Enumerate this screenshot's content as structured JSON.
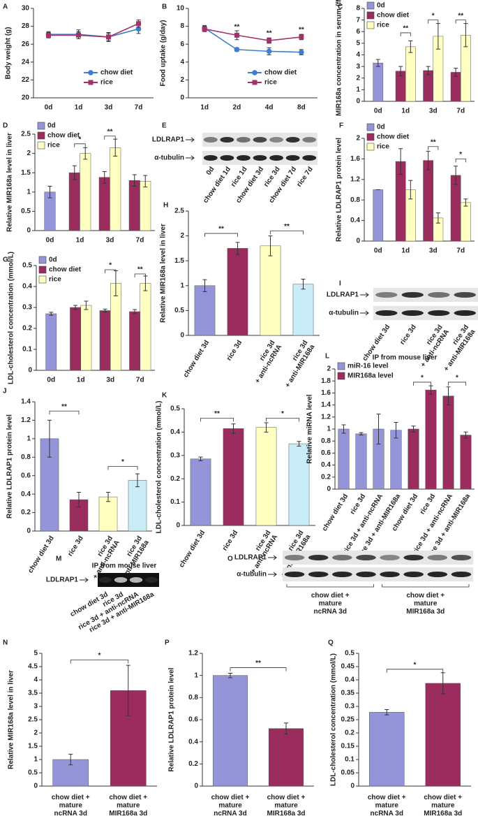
{
  "chart_data": [
    {
      "type": "line",
      "label": "A",
      "ylabel": "Body weight (g)",
      "categories": [
        "0d",
        "1d",
        "3d",
        "7d"
      ],
      "ylim": [
        20,
        30
      ],
      "yticks": [
        20,
        22,
        24,
        26,
        28,
        30
      ],
      "series": [
        {
          "name": "chow diet",
          "color": "#3b7fd0",
          "marker": "circle",
          "values": [
            27.1,
            27.1,
            26.8,
            27.7
          ],
          "errors": [
            0.3,
            0.5,
            0.5,
            0.5
          ]
        },
        {
          "name": "rice",
          "color": "#a3326a",
          "marker": "square",
          "values": [
            27.0,
            27.0,
            26.8,
            28.3
          ],
          "errors": [
            0.3,
            0.4,
            0.4,
            0.4
          ]
        }
      ]
    },
    {
      "type": "line",
      "label": "B",
      "ylabel": "Food uptake (g/day)",
      "categories": [
        "1d",
        "2d",
        "4d",
        "8d"
      ],
      "ylim": [
        0,
        10
      ],
      "yticks": [
        0,
        2,
        4,
        6,
        8,
        10
      ],
      "annotations": [
        "**",
        "**",
        "**"
      ],
      "series": [
        {
          "name": "chow diet",
          "color": "#3b7fd0",
          "marker": "circle",
          "values": [
            7.8,
            5.4,
            5.2,
            5.1
          ],
          "errors": [
            0.3,
            0.2,
            0.4,
            0.3
          ]
        },
        {
          "name": "rice",
          "color": "#a3326a",
          "marker": "square",
          "values": [
            7.7,
            7.0,
            6.4,
            6.8
          ],
          "errors": [
            0.3,
            0.5,
            0.3,
            0.3
          ]
        }
      ]
    },
    {
      "type": "bar",
      "label": "C",
      "ylabel": "MIR168a concentration in serum (fM)",
      "categories": [
        "0d",
        "1d",
        "3d",
        "7d"
      ],
      "ylim": [
        0,
        8
      ],
      "yticks": [
        0,
        1,
        2,
        3,
        4,
        5,
        6,
        7,
        8
      ],
      "annotations": [
        "**",
        "*",
        "**"
      ],
      "series": [
        {
          "name": "0d",
          "color": "#9494d8",
          "values": [
            3.3,
            null,
            null,
            null
          ],
          "errors": [
            0.3,
            null,
            null,
            null
          ]
        },
        {
          "name": "chow diet",
          "color": "#9b2d5e",
          "values": [
            null,
            2.6,
            2.65,
            2.5
          ],
          "errors": [
            null,
            0.4,
            0.35,
            0.35
          ]
        },
        {
          "name": "rice",
          "color": "#ffffc2",
          "values": [
            null,
            4.7,
            5.6,
            5.7
          ],
          "errors": [
            null,
            0.5,
            1.1,
            1.0
          ]
        }
      ]
    },
    {
      "type": "bar",
      "label": "D",
      "ylabel": "Relative MIR168a level in liver",
      "categories": [
        "0d",
        "1d",
        "3d",
        "7d"
      ],
      "ylim": [
        0,
        2.5
      ],
      "yticks": [
        0,
        0.5,
        1,
        1.5,
        2,
        2.5
      ],
      "annotations": [
        "*",
        "**"
      ],
      "series": [
        {
          "name": "0d",
          "color": "#9494d8",
          "values": [
            1.0,
            null,
            null,
            null
          ],
          "errors": [
            0.15,
            null,
            null,
            null
          ]
        },
        {
          "name": "chow diet",
          "color": "#9b2d5e",
          "values": [
            null,
            1.5,
            1.38,
            1.3
          ],
          "errors": [
            null,
            0.18,
            0.15,
            0.15
          ]
        },
        {
          "name": "rice",
          "color": "#ffffc2",
          "values": [
            null,
            2.0,
            2.15,
            1.28
          ],
          "errors": [
            null,
            0.15,
            0.22,
            0.15
          ]
        }
      ]
    },
    {
      "type": "bar",
      "label": "F",
      "ylabel": "Relative LDLRAP1 protein level",
      "categories": [
        "0d",
        "1d",
        "3d",
        "7d"
      ],
      "ylim": [
        0,
        2
      ],
      "yticks": [
        0,
        0.4,
        0.8,
        1.2,
        1.6,
        2
      ],
      "annotations": [
        "**",
        "*"
      ],
      "series": [
        {
          "name": "0d",
          "color": "#9494d8",
          "values": [
            1.0,
            null,
            null,
            null
          ],
          "errors": [
            0,
            null,
            null,
            null
          ]
        },
        {
          "name": "chow diet",
          "color": "#9b2d5e",
          "values": [
            null,
            1.55,
            1.57,
            1.28
          ],
          "errors": [
            null,
            0.25,
            0.18,
            0.18
          ]
        },
        {
          "name": "rice",
          "color": "#ffffc2",
          "values": [
            null,
            1.0,
            0.45,
            0.75
          ],
          "errors": [
            null,
            0.18,
            0.1,
            0.07
          ]
        }
      ]
    },
    {
      "type": "bar",
      "label": "G",
      "ylabel": "LDL-cholesterol concentration (mmol/L)",
      "categories": [
        "0d",
        "1d",
        "3d",
        "7d"
      ],
      "ylim": [
        0,
        0.5
      ],
      "yticks": [
        0,
        0.1,
        0.2,
        0.3,
        0.4,
        0.5
      ],
      "annotations": [
        "*",
        "**"
      ],
      "series": [
        {
          "name": "0d",
          "color": "#9494d8",
          "values": [
            0.27,
            null,
            null,
            null
          ],
          "errors": [
            0.007,
            null,
            null,
            null
          ]
        },
        {
          "name": "chow diet",
          "color": "#9b2d5e",
          "values": [
            null,
            0.3,
            0.285,
            0.28
          ],
          "errors": [
            null,
            0.01,
            0.007,
            0.01
          ]
        },
        {
          "name": "rice",
          "color": "#ffffc2",
          "values": [
            null,
            0.31,
            0.415,
            0.415
          ],
          "errors": [
            null,
            0.02,
            0.06,
            0.035
          ]
        }
      ]
    },
    {
      "type": "bar",
      "label": "H",
      "ylabel": "Relative MIR168a level in liver",
      "categories": [
        "chow diet 3d",
        "rice 3d",
        "rice 3d\n+ anti-ncRNA",
        "rice 3d\n+ anti-MIR168a"
      ],
      "ylim": [
        0,
        2.5
      ],
      "yticks": [
        0,
        0.5,
        1,
        1.5,
        2,
        2.5
      ],
      "annotations": [
        "**",
        "**"
      ],
      "values": [
        1.0,
        1.75,
        1.8,
        1.03
      ],
      "errors": [
        0.12,
        0.12,
        0.2,
        0.1
      ],
      "colors": [
        "#9494d8",
        "#9b2d5e",
        "#ffffc2",
        "#c9ecf7"
      ]
    },
    {
      "type": "bar",
      "label": "J",
      "ylabel": "Relative LDLRAP1 protein level",
      "categories": [
        "chow diet 3d",
        "rice 3d",
        "rice 3d\n+ anti-ncRNA",
        "rice 3d\n+ anti-MIR168a"
      ],
      "ylim": [
        0,
        1.4
      ],
      "yticks": [
        0,
        0.2,
        0.4,
        0.6,
        0.8,
        1,
        1.2,
        1.4
      ],
      "annotations": [
        "**",
        "*"
      ],
      "values": [
        1.0,
        0.34,
        0.37,
        0.55
      ],
      "errors": [
        0.2,
        0.08,
        0.05,
        0.07
      ],
      "colors": [
        "#9494d8",
        "#9b2d5e",
        "#ffffc2",
        "#c9ecf7"
      ]
    },
    {
      "type": "bar",
      "label": "K",
      "ylabel": "LDL-cholesterol concentration (mmol/L)",
      "categories": [
        "chow diet 3d",
        "rice 3d",
        "rice 3d\n+ anti-ncRNA",
        "rice 3d\n+ anti-MIR168a"
      ],
      "ylim": [
        0,
        0.5
      ],
      "yticks": [
        0,
        0.1,
        0.2,
        0.3,
        0.4,
        0.5
      ],
      "annotations": [
        "**",
        "*"
      ],
      "values": [
        0.285,
        0.415,
        0.42,
        0.35
      ],
      "errors": [
        0.008,
        0.02,
        0.02,
        0.01
      ],
      "colors": [
        "#9494d8",
        "#9b2d5e",
        "#ffffc2",
        "#c9ecf7"
      ]
    },
    {
      "type": "bar",
      "label": "L",
      "title": "IP from mouse liver",
      "ylabel": "Relative miRNA level",
      "categories": [
        "chow diet 3d",
        "rice 3d",
        "rice 3d + anti-ncRNA",
        "rice 3d + anti-MIR168a",
        "chow diet 3d",
        "rice 3d",
        "rice 3d + anti-ncRNA",
        "rice 3d + anti-MIR168a"
      ],
      "ylim": [
        0,
        2
      ],
      "yticks": [
        0,
        0.2,
        0.4,
        0.6,
        0.8,
        1,
        1.2,
        1.4,
        1.6,
        1.8,
        2
      ],
      "annotations": [
        "*",
        "*"
      ],
      "series": [
        {
          "name": "miR-16 level",
          "color": "#9494d8",
          "values": [
            1.0,
            0.92,
            1.0,
            0.98,
            null,
            null,
            null,
            null
          ],
          "errors": [
            0.07,
            0.02,
            0.25,
            0.13,
            null,
            null,
            null,
            null
          ]
        },
        {
          "name": "MIR168a level",
          "color": "#9b2d5e",
          "values": [
            null,
            null,
            null,
            null,
            1.0,
            1.65,
            1.55,
            0.9
          ],
          "errors": [
            null,
            null,
            null,
            null,
            0.05,
            0.07,
            0.15,
            0.05
          ]
        }
      ]
    },
    {
      "type": "bar",
      "label": "N",
      "ylabel": "Relative MIR168a level in liver",
      "categories": [
        "chow diet +\nmature\nncRNA 3d",
        "chow diet +\nmature\nMIR168a 3d"
      ],
      "ylim": [
        0,
        5
      ],
      "yticks": [
        0,
        0.5,
        1,
        1.5,
        2,
        2.5,
        3,
        3.5,
        4,
        4.5,
        5
      ],
      "annotations": [
        "*"
      ],
      "values": [
        1.0,
        3.6
      ],
      "errors": [
        0.2,
        0.95
      ],
      "colors": [
        "#9494d8",
        "#9b2d5e"
      ]
    },
    {
      "type": "bar",
      "label": "P",
      "ylabel": "Relative LDLRAP1 protein level",
      "categories": [
        "chow diet +\nmature\nncRNA 3d",
        "chow diet +\nmature\nMIR168a 3d"
      ],
      "ylim": [
        0,
        1.2
      ],
      "yticks": [
        0,
        0.2,
        0.4,
        0.6,
        0.8,
        1,
        1.2
      ],
      "annotations": [
        "**"
      ],
      "values": [
        1.0,
        0.52
      ],
      "errors": [
        0.02,
        0.05
      ],
      "colors": [
        "#9494d8",
        "#9b2d5e"
      ]
    },
    {
      "type": "bar",
      "label": "Q",
      "ylabel": "LDL-cholesterol concentration (mmol/L)",
      "categories": [
        "chow diet +\nmature\nncRNA 3d",
        "chow diet +\nmature\nMIR168a 3d"
      ],
      "ylim": [
        0,
        0.5
      ],
      "yticks": [
        0,
        0.05,
        0.1,
        0.15,
        0.2,
        0.25,
        0.3,
        0.35,
        0.4,
        0.45,
        0.5
      ],
      "annotations": [
        "*"
      ],
      "values": [
        0.278,
        0.387
      ],
      "errors": [
        0.01,
        0.04
      ],
      "colors": [
        "#9494d8",
        "#9b2d5e"
      ]
    }
  ],
  "blots": [
    {
      "label": "E",
      "rows": [
        "LDLRAP1",
        "α-tubulin"
      ],
      "lanes": [
        "0d",
        "chow diet 1d",
        "rice 1d",
        "chow diet 3d",
        "rice 3d",
        "chow diet 7d",
        "rice 7d"
      ]
    },
    {
      "label": "I",
      "rows": [
        "LDLRAP1",
        "α-tubulin"
      ],
      "lanes": [
        "chow diet 3d",
        "rice 3d",
        "rice 3d\n+ anti-ncRNA",
        "rice 3d\n+ anti-MIR168a"
      ]
    },
    {
      "label": "M",
      "title": "IP from mouse liver",
      "rows": [
        "LDLRAP1"
      ],
      "lanes": [
        "chow diet 3d",
        "rice 3d",
        "rice 3d + anti-ncRNA",
        "rice 3d + anti-MIR168a"
      ]
    },
    {
      "label": "O",
      "rows": [
        "LDLRAP1",
        "α-tubulin"
      ],
      "groups": [
        "chow diet +\nmature\nncRNA 3d",
        "chow diet +\nmature\nMIR168a 3d"
      ]
    }
  ]
}
